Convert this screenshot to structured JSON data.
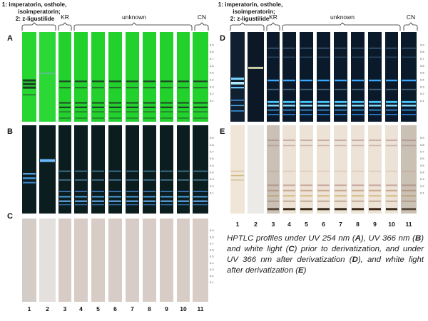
{
  "left_figure": {
    "header": {
      "standards_line1": "1: imperatorin, osthole,",
      "standards_line2": "isoimperatorin;",
      "standards_line3": "2: z-ligustilide",
      "kr": "KR",
      "unknown": "unknown",
      "cn": "CN"
    },
    "panels": [
      "A",
      "B",
      "C"
    ],
    "lanes": [
      "1",
      "2",
      "3",
      "4",
      "5",
      "6",
      "7",
      "8",
      "9",
      "10",
      "11"
    ]
  },
  "right_figure": {
    "header": {
      "standards_line1": "1: imperatorin, osthole,",
      "standards_line2": "isoimperatorin;",
      "standards_line3": "2: z-ligustilide",
      "kr": "KR",
      "unknown": "unknown",
      "cn": "CN"
    },
    "panels": [
      "D",
      "E"
    ],
    "lanes": [
      "1",
      "2",
      "3",
      "4",
      "5",
      "6",
      "7",
      "8",
      "9",
      "10",
      "11"
    ]
  },
  "rf_scale": [
    "0.9",
    "0.8",
    "0.7",
    "0.6",
    "0.5",
    "0.4",
    "0.3",
    "0.2",
    "0.1"
  ],
  "caption": {
    "p1": "HPTLC profiles under UV 254 nm (",
    "A": "A",
    "p2": "), UV 366 nm (",
    "B": "B",
    "p3": ") and white light (",
    "C": "C",
    "p4": ") prior to derivatization, and under UV 366 nm after derivatization (",
    "D": "D",
    "p5": "), and white light after derivatization (",
    "E": "E",
    "p6": ")"
  },
  "colors": {
    "uv254_bg": "#22d12c",
    "uv366_bg": "#0a1c1c",
    "white_bg": "#d8cdc6",
    "deriv366_bg": "#0b1a2a",
    "deriv_white_bg": "#ece3d6"
  }
}
